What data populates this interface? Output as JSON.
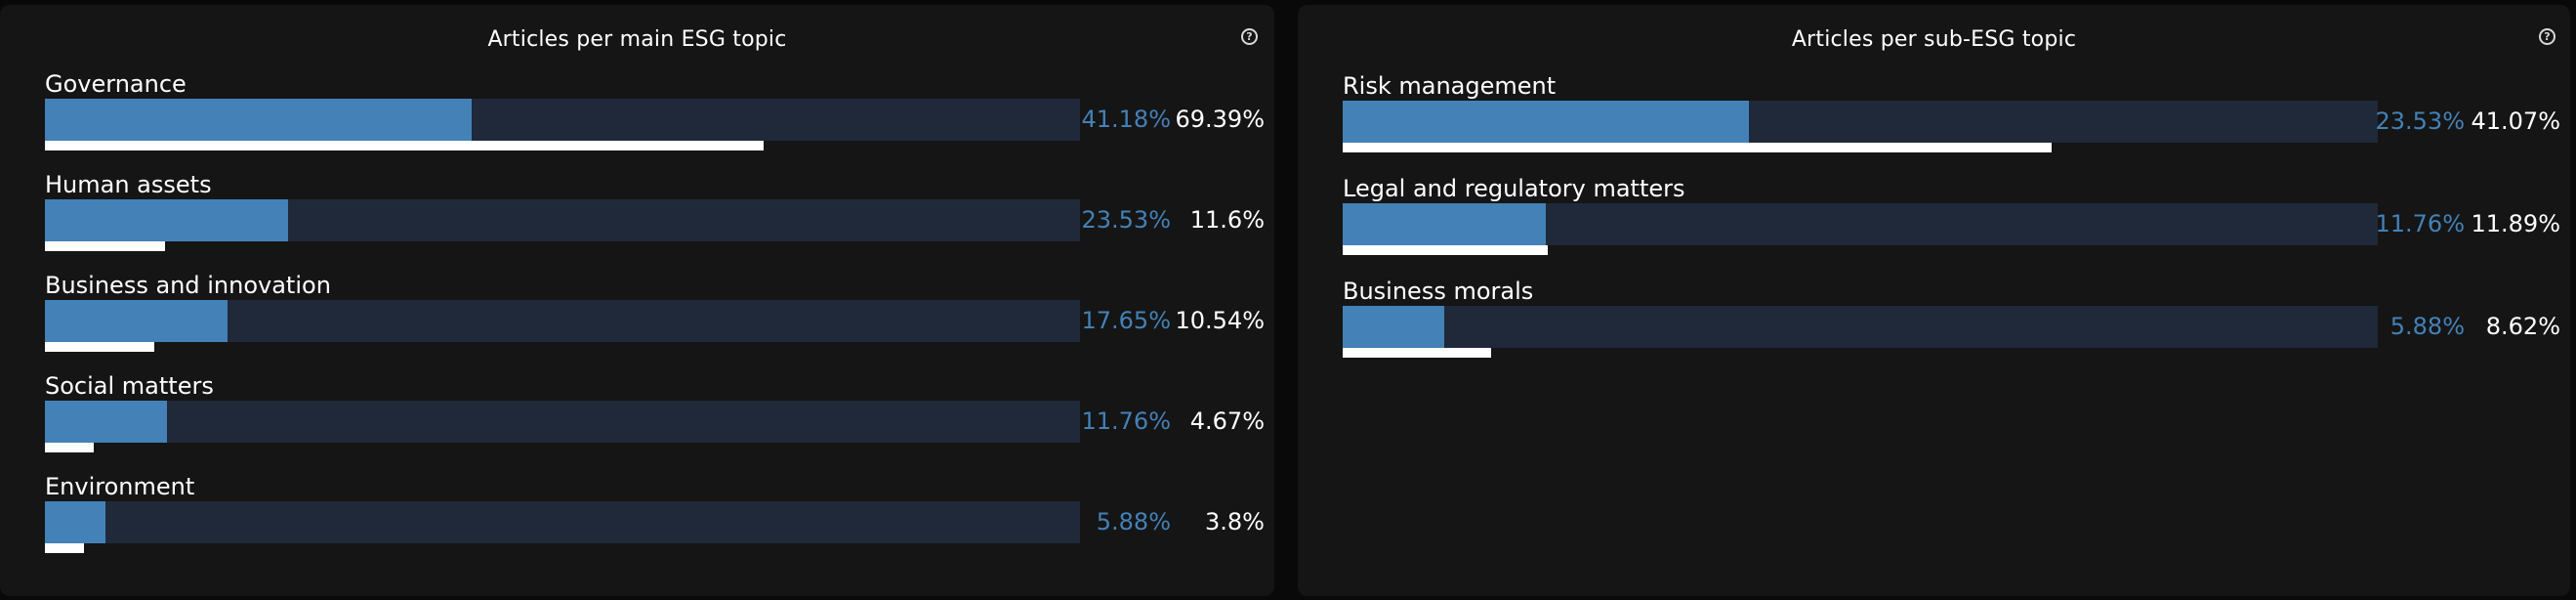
{
  "chart_data": [
    {
      "type": "bar",
      "title": "Articles per main ESG topic",
      "categories": [
        "Governance",
        "Human assets",
        "Business and innovation",
        "Social matters",
        "Environment"
      ],
      "series": [
        {
          "values": [
            41.18,
            23.53,
            17.65,
            11.76,
            5.88
          ],
          "labels": [
            "41.18%",
            "23.53%",
            "17.65%",
            "11.76%",
            "5.88%"
          ]
        },
        {
          "values": [
            69.39,
            11.6,
            10.54,
            4.67,
            3.8
          ],
          "labels": [
            "69.39%",
            "11.6%",
            "10.54%",
            "4.67%",
            "3.8%"
          ]
        }
      ],
      "xlim": [
        0,
        100
      ],
      "help_icon": "question-mark-icon",
      "colors": {
        "primary": "#4381b7",
        "secondary": "#ffffff",
        "track": "#1f2939"
      }
    },
    {
      "type": "bar",
      "title": "Articles per sub-ESG topic",
      "categories": [
        "Risk management",
        "Legal and regulatory matters",
        "Business morals"
      ],
      "series": [
        {
          "values": [
            23.53,
            11.76,
            5.88
          ],
          "labels": [
            "23.53%",
            "11.76%",
            "5.88%"
          ]
        },
        {
          "values": [
            41.07,
            11.89,
            8.62
          ],
          "labels": [
            "41.07%",
            "11.89%",
            "8.62%"
          ]
        }
      ],
      "xlim": [
        0,
        60
      ],
      "help_icon": "question-mark-icon",
      "colors": {
        "primary": "#4381b7",
        "secondary": "#ffffff",
        "track": "#1f2939"
      }
    }
  ]
}
